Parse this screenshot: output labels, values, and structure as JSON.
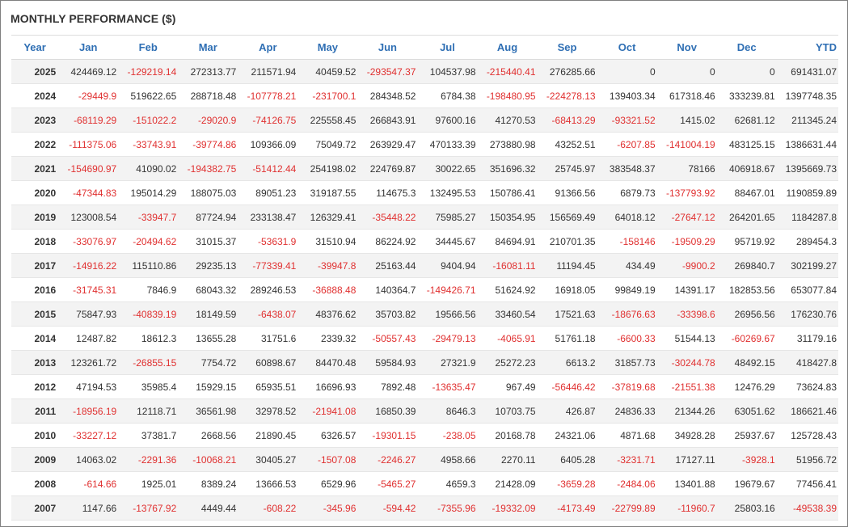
{
  "title": "MONTHLY PERFORMANCE ($)",
  "colors": {
    "header": "#2f6fb4",
    "negative": "#e03030",
    "text": "#333333"
  },
  "columns": [
    "Year",
    "Jan",
    "Feb",
    "Mar",
    "Apr",
    "May",
    "Jun",
    "Jul",
    "Aug",
    "Sep",
    "Oct",
    "Nov",
    "Dec",
    "YTD"
  ],
  "rows": [
    [
      "2025",
      "424469.12",
      "-129219.14",
      "272313.77",
      "211571.94",
      "40459.52",
      "-293547.37",
      "104537.98",
      "-215440.41",
      "276285.66",
      "0",
      "0",
      "0",
      "691431.07"
    ],
    [
      "2024",
      "-29449.9",
      "519622.65",
      "288718.48",
      "-107778.21",
      "-231700.1",
      "284348.52",
      "6784.38",
      "-198480.95",
      "-224278.13",
      "139403.34",
      "617318.46",
      "333239.81",
      "1397748.35"
    ],
    [
      "2023",
      "-68119.29",
      "-151022.2",
      "-29020.9",
      "-74126.75",
      "225558.45",
      "266843.91",
      "97600.16",
      "41270.53",
      "-68413.29",
      "-93321.52",
      "1415.02",
      "62681.12",
      "211345.24"
    ],
    [
      "2022",
      "-111375.06",
      "-33743.91",
      "-39774.86",
      "109366.09",
      "75049.72",
      "263929.47",
      "470133.39",
      "273880.98",
      "43252.51",
      "-6207.85",
      "-141004.19",
      "483125.15",
      "1386631.44"
    ],
    [
      "2021",
      "-154690.97",
      "41090.02",
      "-194382.75",
      "-51412.44",
      "254198.02",
      "224769.87",
      "30022.65",
      "351696.32",
      "25745.97",
      "383548.37",
      "78166",
      "406918.67",
      "1395669.73"
    ],
    [
      "2020",
      "-47344.83",
      "195014.29",
      "188075.03",
      "89051.23",
      "319187.55",
      "114675.3",
      "132495.53",
      "150786.41",
      "91366.56",
      "6879.73",
      "-137793.92",
      "88467.01",
      "1190859.89"
    ],
    [
      "2019",
      "123008.54",
      "-33947.7",
      "87724.94",
      "233138.47",
      "126329.41",
      "-35448.22",
      "75985.27",
      "150354.95",
      "156569.49",
      "64018.12",
      "-27647.12",
      "264201.65",
      "1184287.8"
    ],
    [
      "2018",
      "-33076.97",
      "-20494.62",
      "31015.37",
      "-53631.9",
      "31510.94",
      "86224.92",
      "34445.67",
      "84694.91",
      "210701.35",
      "-158146",
      "-19509.29",
      "95719.92",
      "289454.3"
    ],
    [
      "2017",
      "-14916.22",
      "115110.86",
      "29235.13",
      "-77339.41",
      "-39947.8",
      "25163.44",
      "9404.94",
      "-16081.11",
      "11194.45",
      "434.49",
      "-9900.2",
      "269840.7",
      "302199.27"
    ],
    [
      "2016",
      "-31745.31",
      "7846.9",
      "68043.32",
      "289246.53",
      "-36888.48",
      "140364.7",
      "-149426.71",
      "51624.92",
      "16918.05",
      "99849.19",
      "14391.17",
      "182853.56",
      "653077.84"
    ],
    [
      "2015",
      "75847.93",
      "-40839.19",
      "18149.59",
      "-6438.07",
      "48376.62",
      "35703.82",
      "19566.56",
      "33460.54",
      "17521.63",
      "-18676.63",
      "-33398.6",
      "26956.56",
      "176230.76"
    ],
    [
      "2014",
      "12487.82",
      "18612.3",
      "13655.28",
      "31751.6",
      "2339.32",
      "-50557.43",
      "-29479.13",
      "-4065.91",
      "51761.18",
      "-6600.33",
      "51544.13",
      "-60269.67",
      "31179.16"
    ],
    [
      "2013",
      "123261.72",
      "-26855.15",
      "7754.72",
      "60898.67",
      "84470.48",
      "59584.93",
      "27321.9",
      "25272.23",
      "6613.2",
      "31857.73",
      "-30244.78",
      "48492.15",
      "418427.8"
    ],
    [
      "2012",
      "47194.53",
      "35985.4",
      "15929.15",
      "65935.51",
      "16696.93",
      "7892.48",
      "-13635.47",
      "967.49",
      "-56446.42",
      "-37819.68",
      "-21551.38",
      "12476.29",
      "73624.83"
    ],
    [
      "2011",
      "-18956.19",
      "12118.71",
      "36561.98",
      "32978.52",
      "-21941.08",
      "16850.39",
      "8646.3",
      "10703.75",
      "426.87",
      "24836.33",
      "21344.26",
      "63051.62",
      "186621.46"
    ],
    [
      "2010",
      "-33227.12",
      "37381.7",
      "2668.56",
      "21890.45",
      "6326.57",
      "-19301.15",
      "-238.05",
      "20168.78",
      "24321.06",
      "4871.68",
      "34928.28",
      "25937.67",
      "125728.43"
    ],
    [
      "2009",
      "14063.02",
      "-2291.36",
      "-10068.21",
      "30405.27",
      "-1507.08",
      "-2246.27",
      "4958.66",
      "2270.11",
      "6405.28",
      "-3231.71",
      "17127.11",
      "-3928.1",
      "51956.72"
    ],
    [
      "2008",
      "-614.66",
      "1925.01",
      "8389.24",
      "13666.53",
      "6529.96",
      "-5465.27",
      "4659.3",
      "21428.09",
      "-3659.28",
      "-2484.06",
      "13401.88",
      "19679.67",
      "77456.41"
    ],
    [
      "2007",
      "1147.66",
      "-13767.92",
      "4449.44",
      "-608.22",
      "-345.96",
      "-594.42",
      "-7355.96",
      "-19332.09",
      "-4173.49",
      "-22799.89",
      "-11960.7",
      "25803.16",
      "-49538.39"
    ]
  ]
}
